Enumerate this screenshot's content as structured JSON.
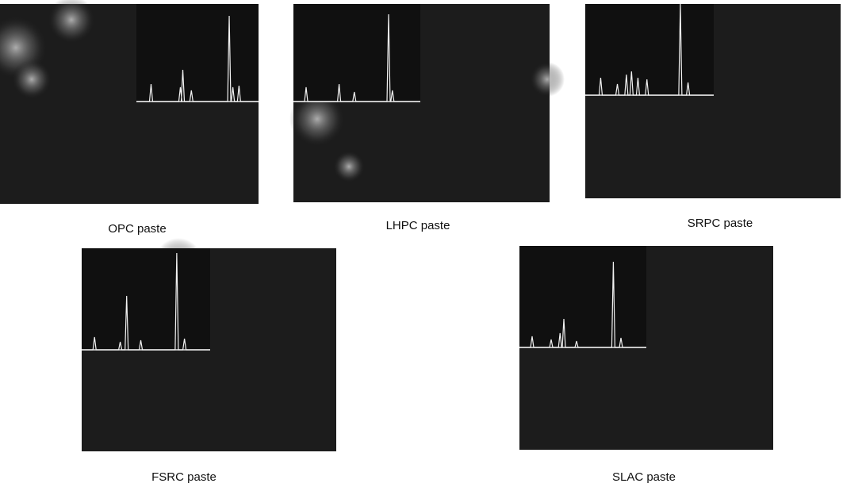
{
  "panels": [
    {
      "caption": "OPC paste"
    },
    {
      "caption": "LHPC paste"
    },
    {
      "caption": "SRPC paste"
    },
    {
      "caption": "FSRC paste"
    },
    {
      "caption": "SLAC paste"
    }
  ]
}
